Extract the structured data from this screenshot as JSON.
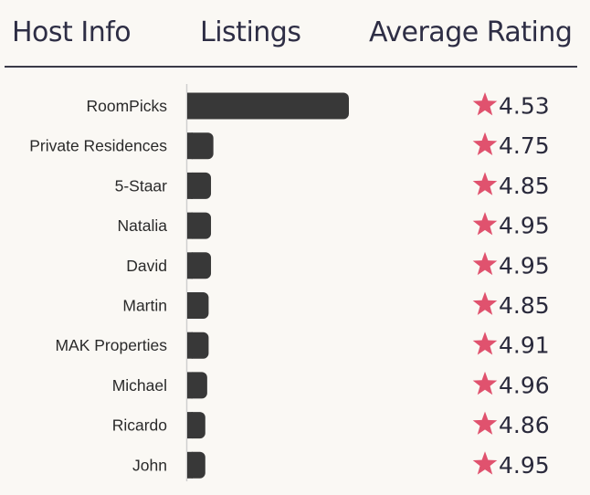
{
  "header": {
    "host_info": "Host Info",
    "listings": "Listings",
    "average_rating": "Average Rating"
  },
  "colors": {
    "bar": "#383838",
    "star": "#e0526e",
    "axis": "#cfcfcf",
    "background": "#faf8f4"
  },
  "icons": {
    "rating": "star-icon"
  },
  "chart_data": {
    "type": "bar",
    "orientation": "horizontal",
    "categories": [
      "RoomPicks",
      "Private Residences",
      "5-Staar",
      "Natalia",
      "David",
      "Martin",
      "MAK Properties",
      "Michael",
      "Ricardo",
      "John"
    ],
    "series": [
      {
        "values": [
          34,
          5.5,
          5,
          5,
          5,
          4.5,
          4.5,
          4.2,
          3.8,
          3.8
        ]
      }
    ],
    "ratings": [
      4.53,
      4.75,
      4.85,
      4.95,
      4.95,
      4.85,
      4.91,
      4.96,
      4.86,
      4.95
    ],
    "xlim": [
      0,
      34
    ],
    "grid": false
  }
}
